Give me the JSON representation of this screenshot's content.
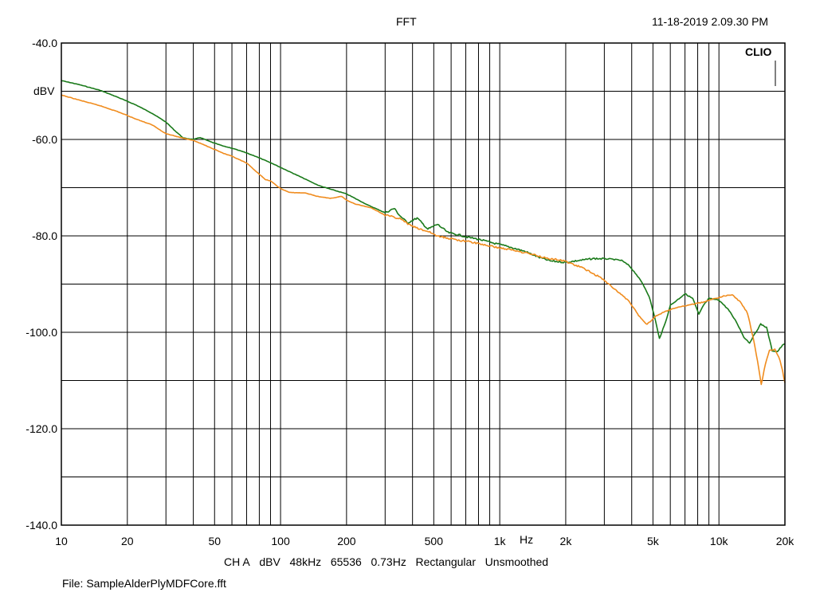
{
  "header": {
    "title": "FFT",
    "timestamp": "11-18-2019 2.09.30 PM"
  },
  "brand": "CLIO",
  "footer": {
    "settings": [
      "CH A",
      "dBV",
      "48kHz",
      "65536",
      "0.73Hz",
      "Rectangular",
      "Unsmoothed"
    ],
    "file": "File: SampleAlderPlyMDFCore.fft"
  },
  "chart_data": {
    "type": "line",
    "title": "FFT",
    "xscale": "log",
    "xlim": [
      10,
      20000
    ],
    "ylim": [
      -140,
      -40
    ],
    "grid": true,
    "xlabel": "Hz",
    "ylabel": "dBV",
    "x_ticks": [
      {
        "value": 10,
        "label": "10"
      },
      {
        "value": 20,
        "label": "20"
      },
      {
        "value": 50,
        "label": "50"
      },
      {
        "value": 100,
        "label": "100"
      },
      {
        "value": 200,
        "label": "200"
      },
      {
        "value": 500,
        "label": "500"
      },
      {
        "value": 1000,
        "label": "1k"
      },
      {
        "value": 2000,
        "label": "2k"
      },
      {
        "value": 5000,
        "label": "5k"
      },
      {
        "value": 10000,
        "label": "10k"
      },
      {
        "value": 20000,
        "label": "20k"
      }
    ],
    "y_ticks": [
      {
        "value": -40,
        "label": "-40.0"
      },
      {
        "value": -60,
        "label": "-60.0"
      },
      {
        "value": -80,
        "label": "-80.0"
      },
      {
        "value": -100,
        "label": "-100.0"
      },
      {
        "value": -120,
        "label": "-120.0"
      },
      {
        "value": -140,
        "label": "-140.0"
      }
    ],
    "series": [
      {
        "color": "#1a7a1a",
        "points": [
          [
            10,
            -47.8
          ],
          [
            12,
            -48.6
          ],
          [
            15,
            -49.8
          ],
          [
            18,
            -51.2
          ],
          [
            22,
            -52.9
          ],
          [
            26,
            -54.6
          ],
          [
            30,
            -56.4
          ],
          [
            33,
            -58.2
          ],
          [
            36,
            -59.7
          ],
          [
            40,
            -60.0
          ],
          [
            43,
            -59.6
          ],
          [
            48,
            -60.5
          ],
          [
            55,
            -61.4
          ],
          [
            60,
            -61.8
          ],
          [
            70,
            -62.8
          ],
          [
            80,
            -63.8
          ],
          [
            90,
            -64.8
          ],
          [
            100,
            -65.8
          ],
          [
            120,
            -67.5
          ],
          [
            150,
            -69.6
          ],
          [
            200,
            -71.3
          ],
          [
            250,
            -73.6
          ],
          [
            300,
            -75.2
          ],
          [
            330,
            -74.3
          ],
          [
            350,
            -75.8
          ],
          [
            380,
            -77.3
          ],
          [
            420,
            -76.3
          ],
          [
            470,
            -78.6
          ],
          [
            520,
            -77.6
          ],
          [
            580,
            -79.3
          ],
          [
            650,
            -79.8
          ],
          [
            720,
            -80.3
          ],
          [
            800,
            -80.7
          ],
          [
            900,
            -81.3
          ],
          [
            1000,
            -81.8
          ],
          [
            1150,
            -82.5
          ],
          [
            1300,
            -83.2
          ],
          [
            1500,
            -84.4
          ],
          [
            1700,
            -85.2
          ],
          [
            2000,
            -85.5
          ],
          [
            2300,
            -85.1
          ],
          [
            2700,
            -84.7
          ],
          [
            3200,
            -84.8
          ],
          [
            3600,
            -85.1
          ],
          [
            3900,
            -86.2
          ],
          [
            4200,
            -88.0
          ],
          [
            4500,
            -90.0
          ],
          [
            4800,
            -92.5
          ],
          [
            5100,
            -97.0
          ],
          [
            5350,
            -101.3
          ],
          [
            5700,
            -98.0
          ],
          [
            6000,
            -94.4
          ],
          [
            6500,
            -93.2
          ],
          [
            7000,
            -92.0
          ],
          [
            7600,
            -93.0
          ],
          [
            8100,
            -96.3
          ],
          [
            8500,
            -94.4
          ],
          [
            9000,
            -93.0
          ],
          [
            10000,
            -93.3
          ],
          [
            11000,
            -95.2
          ],
          [
            12000,
            -97.8
          ],
          [
            13000,
            -101.0
          ],
          [
            13800,
            -102.2
          ],
          [
            14500,
            -100.5
          ],
          [
            15500,
            -98.3
          ],
          [
            16500,
            -99.0
          ],
          [
            17500,
            -103.8
          ],
          [
            18500,
            -104.0
          ],
          [
            19500,
            -102.7
          ],
          [
            20000,
            -102.4
          ]
        ]
      },
      {
        "color": "#f08c1e",
        "points": [
          [
            10,
            -50.8
          ],
          [
            12,
            -51.8
          ],
          [
            15,
            -53.0
          ],
          [
            18,
            -54.2
          ],
          [
            22,
            -55.8
          ],
          [
            26,
            -57.0
          ],
          [
            30,
            -58.8
          ],
          [
            35,
            -59.6
          ],
          [
            40,
            -60.2
          ],
          [
            48,
            -61.7
          ],
          [
            55,
            -62.9
          ],
          [
            60,
            -63.5
          ],
          [
            70,
            -64.9
          ],
          [
            75,
            -66.1
          ],
          [
            80,
            -67.2
          ],
          [
            85,
            -68.3
          ],
          [
            90,
            -68.6
          ],
          [
            100,
            -70.2
          ],
          [
            110,
            -71.0
          ],
          [
            130,
            -71.1
          ],
          [
            150,
            -71.9
          ],
          [
            170,
            -72.2
          ],
          [
            190,
            -71.8
          ],
          [
            200,
            -72.6
          ],
          [
            220,
            -73.4
          ],
          [
            260,
            -74.2
          ],
          [
            300,
            -75.7
          ],
          [
            350,
            -76.4
          ],
          [
            390,
            -77.8
          ],
          [
            430,
            -78.6
          ],
          [
            480,
            -79.2
          ],
          [
            520,
            -80.1
          ],
          [
            570,
            -80.4
          ],
          [
            650,
            -80.9
          ],
          [
            720,
            -81.2
          ],
          [
            800,
            -81.6
          ],
          [
            900,
            -82.1
          ],
          [
            1000,
            -82.5
          ],
          [
            1200,
            -83.1
          ],
          [
            1400,
            -83.8
          ],
          [
            1600,
            -84.5
          ],
          [
            1800,
            -84.9
          ],
          [
            2000,
            -85.3
          ],
          [
            2400,
            -86.7
          ],
          [
            2900,
            -88.7
          ],
          [
            3400,
            -91.3
          ],
          [
            3900,
            -93.6
          ],
          [
            4300,
            -96.5
          ],
          [
            4700,
            -98.4
          ],
          [
            5100,
            -96.8
          ],
          [
            5600,
            -95.8
          ],
          [
            6200,
            -95.1
          ],
          [
            7000,
            -94.5
          ],
          [
            8000,
            -94.0
          ],
          [
            9000,
            -93.4
          ],
          [
            10500,
            -92.5
          ],
          [
            11500,
            -92.2
          ],
          [
            12500,
            -93.7
          ],
          [
            13500,
            -96.0
          ],
          [
            14300,
            -101.0
          ],
          [
            15000,
            -106.0
          ],
          [
            15600,
            -110.8
          ],
          [
            16300,
            -106.5
          ],
          [
            17000,
            -103.8
          ],
          [
            18000,
            -103.5
          ],
          [
            19000,
            -105.8
          ],
          [
            19500,
            -108.0
          ],
          [
            20000,
            -110.5
          ]
        ]
      }
    ]
  }
}
